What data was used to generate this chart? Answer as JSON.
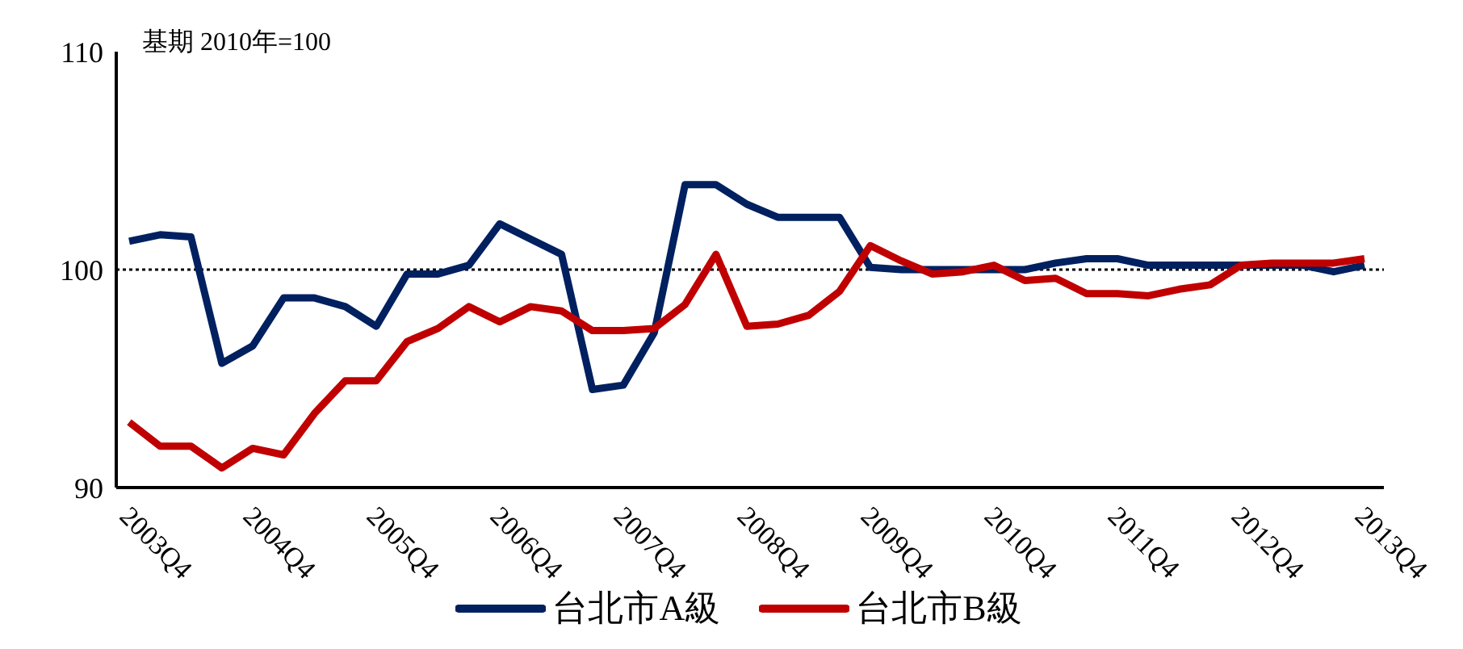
{
  "chart_data": {
    "type": "line",
    "annotations": [
      "基期 2010年=100"
    ],
    "categories": [
      "2003Q4",
      null,
      null,
      null,
      "2004Q4",
      null,
      null,
      null,
      "2005Q4",
      null,
      null,
      null,
      "2006Q4",
      null,
      null,
      null,
      "2007Q4",
      null,
      null,
      null,
      "2008Q4",
      null,
      null,
      null,
      "2009Q4",
      null,
      null,
      null,
      "2010Q4",
      null,
      null,
      null,
      "2011Q4",
      null,
      null,
      null,
      "2012Q4",
      null,
      null,
      null,
      "2013Q4"
    ],
    "series": [
      {
        "name": "台北市A級",
        "color": "#002060",
        "values": [
          101.3,
          101.6,
          101.5,
          95.7,
          96.5,
          98.7,
          98.7,
          98.3,
          97.4,
          99.8,
          99.8,
          100.2,
          102.1,
          101.4,
          100.7,
          94.5,
          94.7,
          97.1,
          103.9,
          103.9,
          103.0,
          102.4,
          102.4,
          102.4,
          100.1,
          100.0,
          100.0,
          100.0,
          100.0,
          100.0,
          100.3,
          100.5,
          100.5,
          100.2,
          100.2,
          100.2,
          100.2,
          100.2,
          100.2,
          99.9,
          100.2
        ]
      },
      {
        "name": "台北市B級",
        "color": "#c00000",
        "values": [
          93.0,
          91.9,
          91.9,
          90.9,
          91.8,
          91.5,
          93.4,
          94.9,
          94.9,
          96.7,
          97.3,
          98.3,
          97.6,
          98.3,
          98.1,
          97.2,
          97.2,
          97.3,
          98.4,
          100.7,
          97.4,
          97.5,
          97.9,
          99.0,
          101.1,
          100.4,
          99.8,
          99.9,
          100.2,
          99.5,
          99.6,
          98.9,
          98.9,
          98.8,
          99.1,
          99.3,
          100.2,
          100.3,
          100.3,
          100.3,
          100.5
        ]
      }
    ],
    "ylim": [
      90,
      110
    ],
    "yticks": [
      90,
      100,
      110
    ],
    "ref_lines": [
      {
        "axis": "y",
        "value": 100,
        "color": "#000000",
        "line_style": "dotted"
      }
    ],
    "legend": "bottom",
    "marker": "none",
    "line_style": "solid"
  }
}
